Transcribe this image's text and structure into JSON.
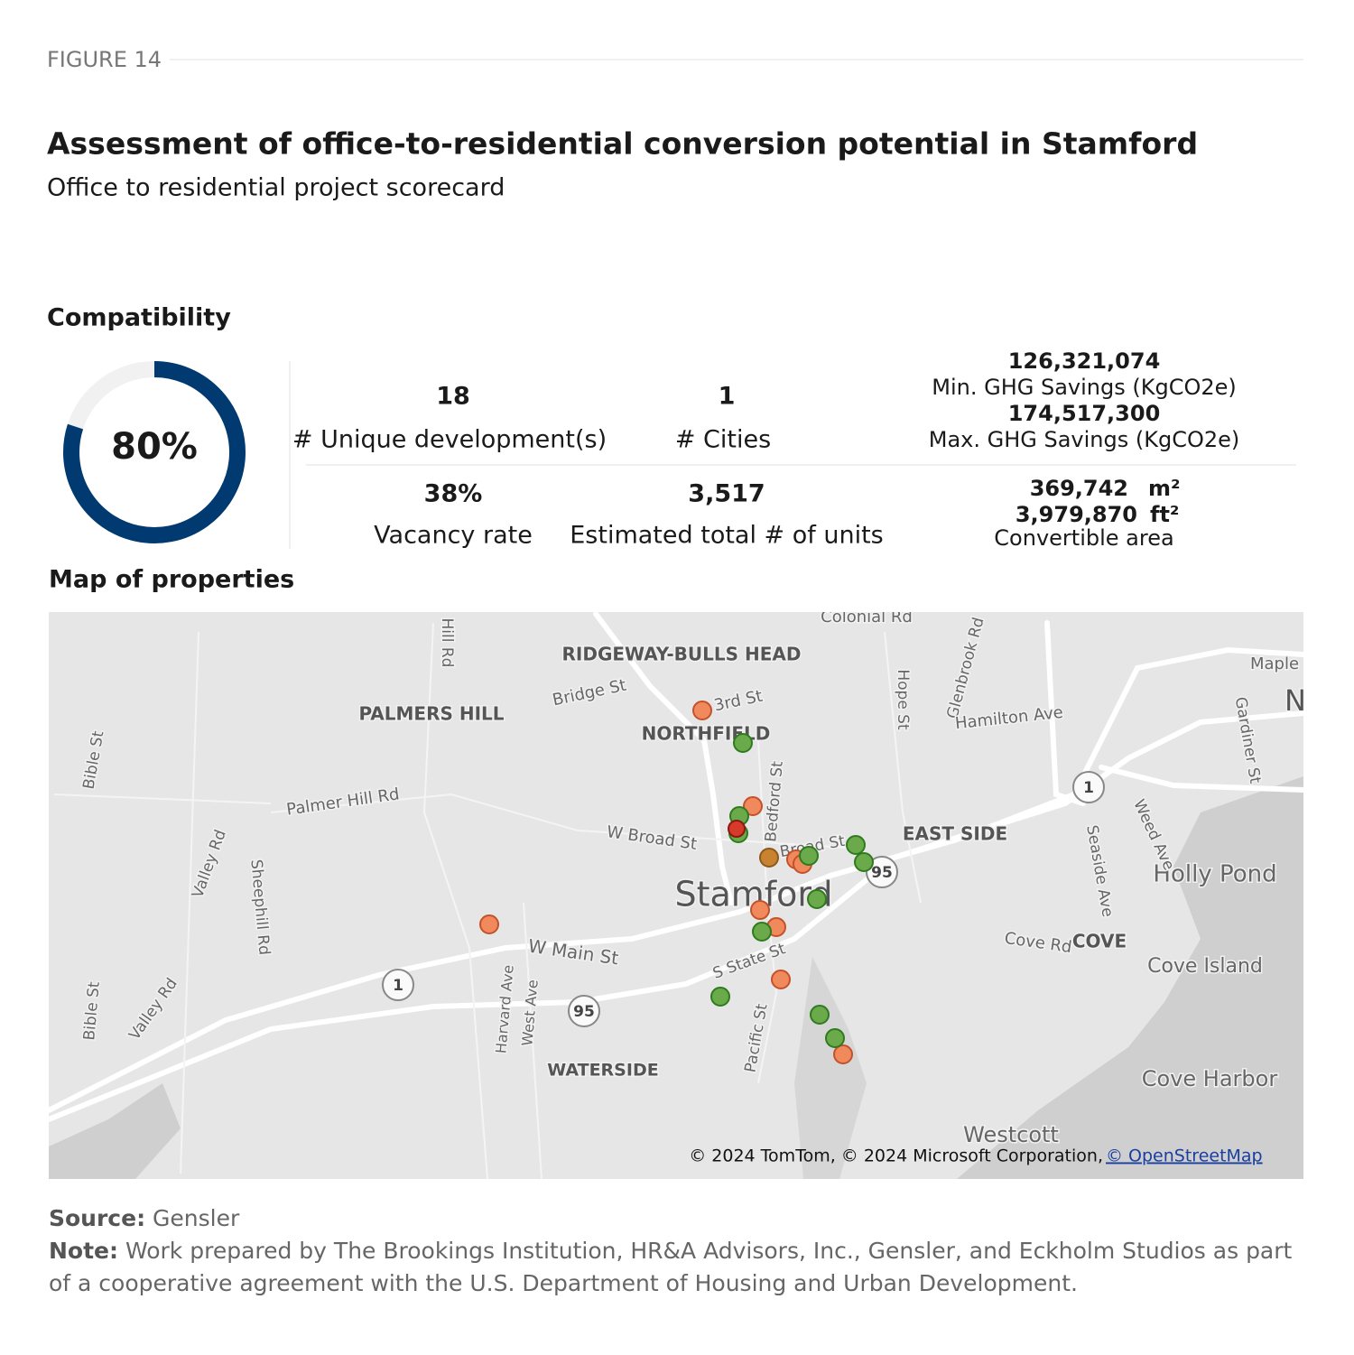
{
  "header": {
    "figure": "FIGURE 14",
    "title": "Assessment of office-to-residential conversion potential in Stamford",
    "subtitle": "Office to residential project scorecard"
  },
  "compatibility": {
    "heading": "Compatibility",
    "value": 80,
    "label": "80%",
    "color": "#003a70"
  },
  "kpis": {
    "developments": {
      "value": "18",
      "label": "# Unique development(s)"
    },
    "cities": {
      "value": "1",
      "label": "# Cities"
    },
    "min_ghg": {
      "value": "126,321,074",
      "label": "Min. GHG Savings (KgCO2e)"
    },
    "max_ghg": {
      "value": "174,517,300",
      "label": "Max. GHG Savings (KgCO2e)"
    },
    "vacancy": {
      "value": "38%",
      "label": "Vacancy rate"
    },
    "units": {
      "value": "3,517",
      "label": "Estimated total # of units"
    },
    "area": {
      "m2": "369,742",
      "m2_unit": "m²",
      "ft2": "3,979,870",
      "ft2_unit": "ft²",
      "label": "Convertible area"
    }
  },
  "map": {
    "heading": "Map of properties",
    "labels": [
      "RIDGEWAY-BULLS HEAD",
      "Colonial Rd",
      "PALMERS HILL",
      "Bridge St",
      "3rd St",
      "NORTHFIELD",
      "Hope St",
      "Glenbrook Rd",
      "Hamilton Ave",
      "Maple",
      "Gardiner St",
      "Bible St",
      "Palmer Hill Rd",
      "W Broad St",
      "Bedford St",
      "Broad St",
      "EAST SIDE",
      "Stamford",
      "Holly Pond",
      "Weed Ave",
      "Seaside Ave",
      "Cove Rd",
      "COVE",
      "Cove Island",
      "W Main St",
      "S State St",
      "Harvard Ave",
      "West Ave",
      "Pacific St",
      "WATERSIDE",
      "Cove Harbor",
      "Westcott",
      "Valley Rd",
      "Sheephill Rd",
      "Hill Rd",
      "Bible St",
      "Valley Rd",
      "N"
    ],
    "shields": [
      "1",
      "95",
      "1",
      "95"
    ],
    "attribution": "© 2024 TomTom, © 2024 Microsoft Corporation, ",
    "attribution_link": "© OpenStreetMap"
  },
  "footer": {
    "source_label": "Source:",
    "source": " Gensler",
    "note_label": "Note:",
    "note": " Work prepared by The Brookings Institution, HR&A Advisors, Inc., Gensler, and Eckholm Studios as part of a cooperative agreement with the U.S. Department of Housing and Urban Development."
  }
}
